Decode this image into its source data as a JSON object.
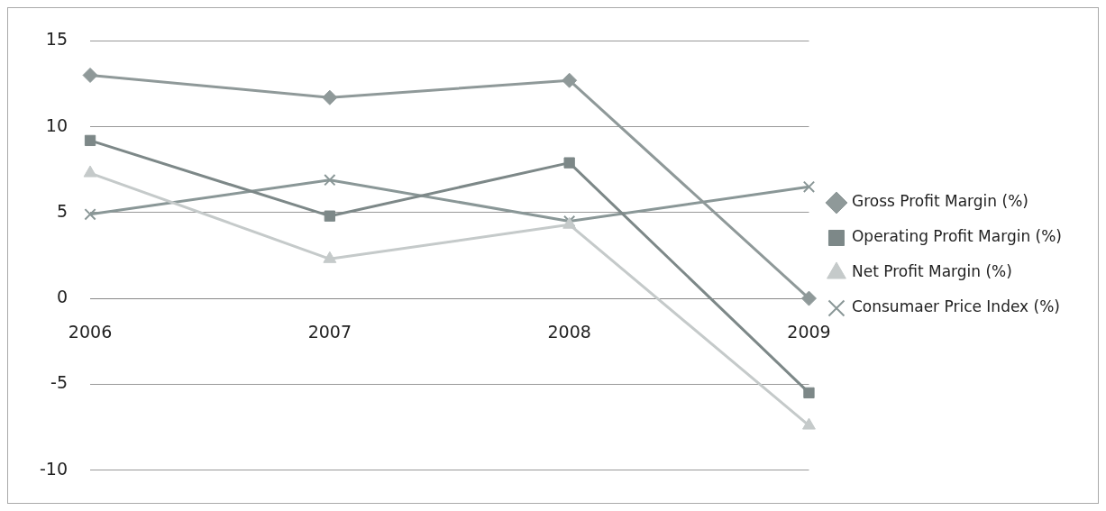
{
  "chart_data": {
    "type": "line",
    "categories": [
      "2006",
      "2007",
      "2008",
      "2009"
    ],
    "series": [
      {
        "name": "Gross Profit Margin (%)",
        "color": "#8f9999",
        "marker": "diamond",
        "values": [
          13.0,
          11.7,
          12.7,
          0
        ]
      },
      {
        "name": "Operating Profit Margin (%)",
        "color": "#7d8888",
        "marker": "square",
        "values": [
          9.2,
          4.8,
          7.9,
          -5.5
        ]
      },
      {
        "name": "Net Profit Margin (%)",
        "color": "#c5caca",
        "marker": "triangle",
        "values": [
          7.3,
          2.3,
          4.3,
          -7.4
        ]
      },
      {
        "name": "Consumaer Price Index (%)",
        "color": "#8a9797",
        "marker": "cross",
        "values": [
          4.9,
          6.9,
          4.5,
          6.5
        ]
      }
    ],
    "ylim": [
      -10,
      15
    ],
    "yticks": [
      -10,
      -5,
      0,
      5,
      10,
      15
    ],
    "grid": "y",
    "legend": "right"
  }
}
